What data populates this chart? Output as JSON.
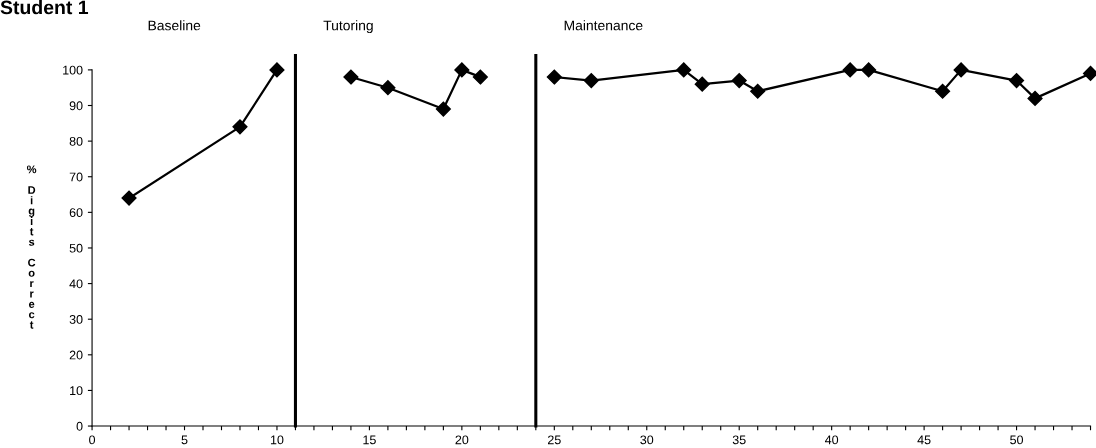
{
  "chart_data": {
    "type": "line",
    "title": "Student 1",
    "ylabel": "% Digits Correct",
    "annotations": [
      "Baseline",
      "Tutoring",
      "Maintenance"
    ],
    "series": [
      {
        "color": "#000000",
        "x": [
          2,
          8,
          10
        ],
        "values": [
          64,
          84,
          100
        ]
      },
      {
        "color": "#000000",
        "x": [
          14,
          16,
          19,
          20,
          21
        ],
        "values": [
          98,
          95,
          89,
          100,
          98
        ]
      },
      {
        "color": "#000000",
        "x": [
          25,
          27,
          32,
          33,
          35,
          36,
          41,
          42,
          46,
          47,
          50,
          51,
          54
        ],
        "values": [
          98,
          97,
          100,
          96,
          97,
          94,
          100,
          100,
          94,
          100,
          97,
          92,
          99
        ]
      }
    ],
    "ref_lines": [
      {
        "axis": "x",
        "value": 11,
        "color": "#000000"
      },
      {
        "axis": "x",
        "value": 24,
        "color": "#000000"
      }
    ],
    "marker": "diamond",
    "line_style": "solid",
    "grid": false,
    "legend": false,
    "xlim": [
      0,
      54
    ],
    "ylim": [
      0,
      100
    ],
    "xticks": [
      0,
      {
        "value": 1,
        "label": null
      },
      {
        "value": 2,
        "label": null
      },
      {
        "value": 3,
        "label": null
      },
      {
        "value": 4,
        "label": null
      },
      5,
      {
        "value": 6,
        "label": null
      },
      {
        "value": 7,
        "label": null
      },
      {
        "value": 8,
        "label": null
      },
      {
        "value": 9,
        "label": null
      },
      10,
      {
        "value": 11,
        "label": null
      },
      {
        "value": 12,
        "label": null
      },
      {
        "value": 13,
        "label": null
      },
      {
        "value": 14,
        "label": null
      },
      15,
      {
        "value": 16,
        "label": null
      },
      {
        "value": 17,
        "label": null
      },
      {
        "value": 18,
        "label": null
      },
      {
        "value": 19,
        "label": null
      },
      20,
      {
        "value": 21,
        "label": null
      },
      {
        "value": 22,
        "label": null
      },
      {
        "value": 23,
        "label": null
      },
      {
        "value": 24,
        "label": null
      },
      25,
      {
        "value": 26,
        "label": null
      },
      {
        "value": 27,
        "label": null
      },
      {
        "value": 28,
        "label": null
      },
      {
        "value": 29,
        "label": null
      },
      30,
      {
        "value": 31,
        "label": null
      },
      {
        "value": 32,
        "label": null
      },
      {
        "value": 33,
        "label": null
      },
      {
        "value": 34,
        "label": null
      },
      35,
      {
        "value": 36,
        "label": null
      },
      {
        "value": 37,
        "label": null
      },
      {
        "value": 38,
        "label": null
      },
      {
        "value": 39,
        "label": null
      },
      40,
      {
        "value": 41,
        "label": null
      },
      {
        "value": 42,
        "label": null
      },
      {
        "value": 43,
        "label": null
      },
      {
        "value": 44,
        "label": null
      },
      45,
      {
        "value": 46,
        "label": null
      },
      {
        "value": 47,
        "label": null
      },
      {
        "value": 48,
        "label": null
      },
      {
        "value": 49,
        "label": null
      },
      50,
      {
        "value": 51,
        "label": null
      },
      {
        "value": 52,
        "label": null
      },
      {
        "value": 53,
        "label": null
      },
      {
        "value": 54,
        "label": null
      }
    ],
    "yticks": [
      0,
      10,
      20,
      30,
      40,
      50,
      60,
      70,
      80,
      90,
      100
    ]
  }
}
